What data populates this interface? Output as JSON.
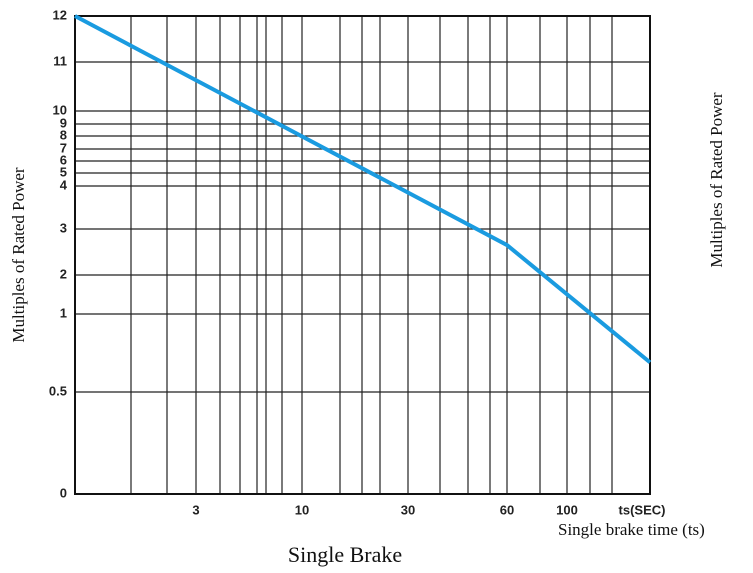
{
  "chart_data": {
    "type": "line",
    "title": "Single Brake",
    "y_label": "Multiples of Rated Power",
    "x_end_label": "ts(SEC)",
    "xlim": [
      0.8,
      150
    ],
    "xticks": [
      3,
      10,
      30,
      60,
      100
    ],
    "ylim": [
      0,
      12
    ],
    "yticks": [
      12,
      11,
      10,
      9,
      8,
      7,
      6,
      5,
      4,
      3,
      2,
      1,
      0.5,
      0
    ],
    "grid": true,
    "series": [
      {
        "color": "#1a9be0",
        "x": [
          0.8,
          60,
          150
        ],
        "values": [
          12,
          2.65,
          0.69
        ]
      }
    ]
  },
  "side_panel": {
    "y_label": "Multiples of Rated Power",
    "x_label": "Single brake time (ts)"
  }
}
